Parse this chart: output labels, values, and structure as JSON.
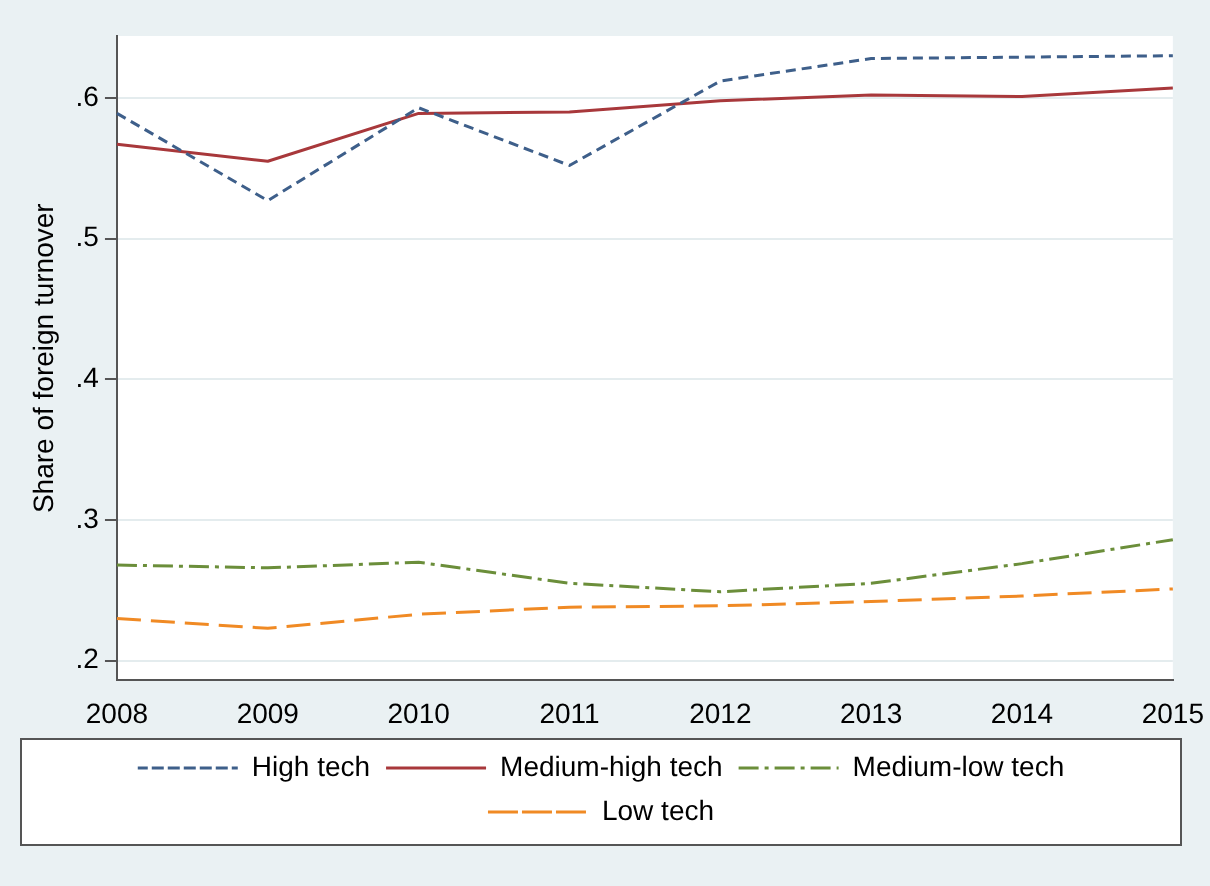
{
  "chart_data": {
    "type": "line",
    "ylabel": "Share of foreign turnover",
    "categories": [
      "2008",
      "2009",
      "2010",
      "2011",
      "2012",
      "2013",
      "2014",
      "2015"
    ],
    "series": [
      {
        "name": "High tech",
        "color": "#3e5f8a",
        "line_style": "dashed",
        "values": [
          0.589,
          0.527,
          0.593,
          0.552,
          0.612,
          0.628,
          0.629,
          0.63
        ]
      },
      {
        "name": "Medium-high tech",
        "color": "#a8383b",
        "line_style": "solid",
        "values": [
          0.567,
          0.555,
          0.589,
          0.59,
          0.598,
          0.602,
          0.601,
          0.607
        ]
      },
      {
        "name": "Medium-low tech",
        "color": "#6b8e3a",
        "line_style": "dashed",
        "values": [
          0.268,
          0.266,
          0.27,
          0.255,
          0.249,
          0.255,
          0.269,
          0.286
        ]
      },
      {
        "name": "Low tech",
        "color": "#f08a24",
        "line_style": "dashed",
        "values": [
          0.23,
          0.223,
          0.233,
          0.238,
          0.239,
          0.242,
          0.246,
          0.251
        ]
      }
    ],
    "ylim": [
      0.186,
      0.644
    ],
    "yticks": [
      {
        "value": 0.2,
        "label": ".2"
      },
      {
        "value": 0.3,
        "label": ".3"
      },
      {
        "value": 0.4,
        "label": ".4"
      },
      {
        "value": 0.5,
        "label": ".5"
      },
      {
        "value": 0.6,
        "label": ".6"
      }
    ],
    "grid": "y",
    "legend": "bottom",
    "marker": "none"
  }
}
